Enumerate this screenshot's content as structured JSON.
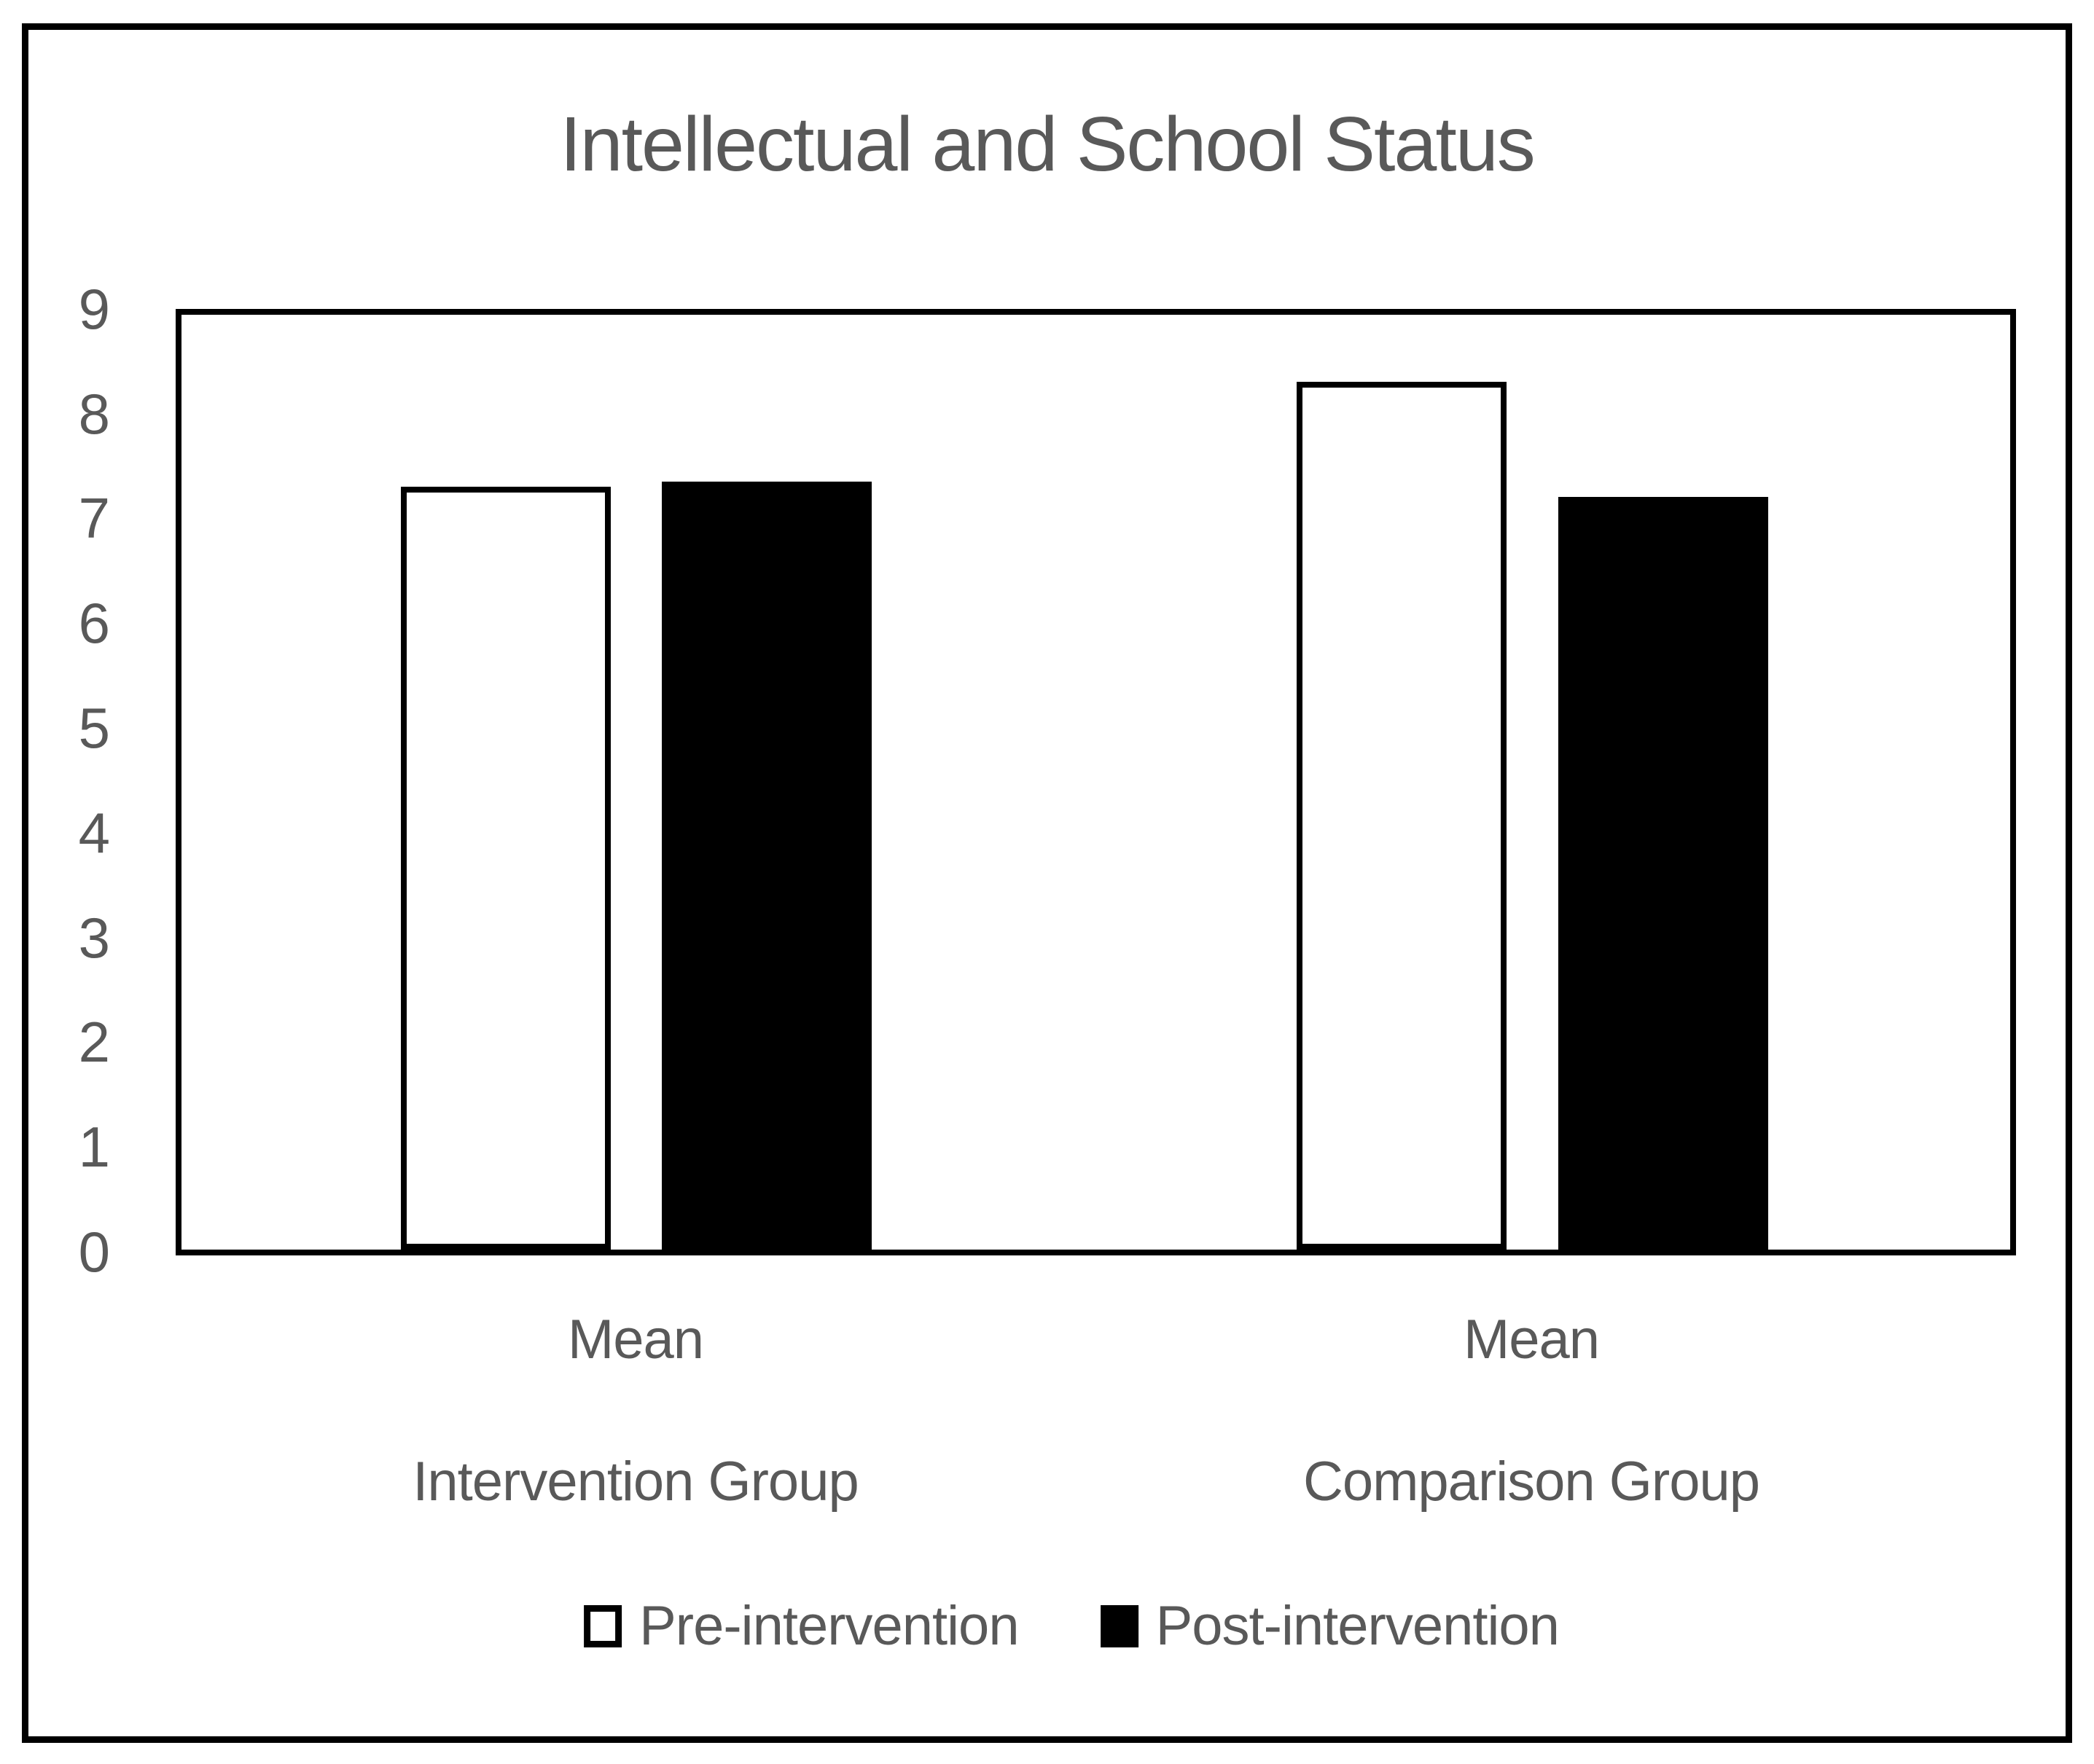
{
  "title": "Intellectual and School Status",
  "colors": {
    "text": "#595959",
    "line": "#000000",
    "background": "#ffffff",
    "pre_intervention_fill": "#ffffff",
    "post_intervention_fill": "#000000"
  },
  "chart_data": {
    "type": "bar",
    "title": "Intellectual and School Status",
    "categories": [
      "Intervention Group",
      "Comparison Group"
    ],
    "x_tick_label": "Mean",
    "series": [
      {
        "name": "Pre-intervention",
        "values": [
          7.3,
          8.3
        ]
      },
      {
        "name": "Post-intervention",
        "values": [
          7.35,
          7.2
        ]
      }
    ],
    "ylim": [
      0,
      9
    ],
    "yticks": [
      0,
      1,
      2,
      3,
      4,
      5,
      6,
      7,
      8,
      9
    ],
    "grid": false,
    "legend_position": "bottom",
    "bar_style": {
      "pre": {
        "fill": "#ffffff",
        "border": "#000000"
      },
      "post": {
        "fill": "#000000",
        "border": "#000000"
      }
    }
  }
}
